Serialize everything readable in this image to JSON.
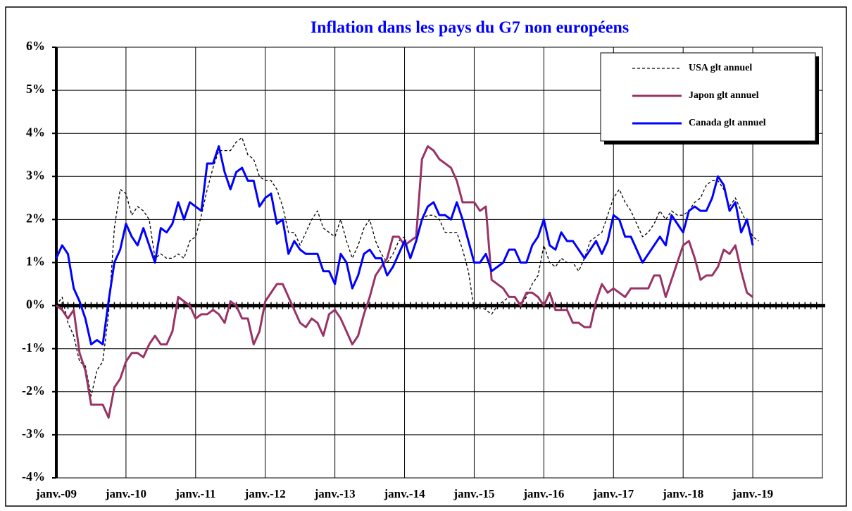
{
  "chart_data": {
    "type": "line",
    "title": "Inflation dans les pays du G7 non européens",
    "categories": [
      "janv.-09",
      null,
      null,
      null,
      null,
      null,
      null,
      null,
      null,
      null,
      null,
      null,
      "janv.-10",
      null,
      null,
      null,
      null,
      null,
      null,
      null,
      null,
      null,
      null,
      null,
      "janv.-11",
      null,
      null,
      null,
      null,
      null,
      null,
      null,
      null,
      null,
      null,
      null,
      "janv.-12",
      null,
      null,
      null,
      null,
      null,
      null,
      null,
      null,
      null,
      null,
      null,
      "janv.-13",
      null,
      null,
      null,
      null,
      null,
      null,
      null,
      null,
      null,
      null,
      null,
      "janv.-14",
      null,
      null,
      null,
      null,
      null,
      null,
      null,
      null,
      null,
      null,
      null,
      "janv.-15",
      null,
      null,
      null,
      null,
      null,
      null,
      null,
      null,
      null,
      null,
      null,
      "janv.-16",
      null,
      null,
      null,
      null,
      null,
      null,
      null,
      null,
      null,
      null,
      null,
      "janv.-17",
      null,
      null,
      null,
      null,
      null,
      null,
      null,
      null,
      null,
      null,
      null,
      "janv.-18",
      null,
      null,
      null,
      null,
      null,
      null,
      null,
      null,
      null,
      null,
      null,
      "janv.-19",
      null,
      null,
      null,
      null,
      null,
      null,
      null,
      null,
      null,
      null,
      null
    ],
    "series": [
      {
        "name": "USA glt annuel",
        "color": "#000000",
        "dash": true,
        "values": [
          0.0,
          0.2,
          -0.4,
          -0.7,
          -1.3,
          -1.4,
          -2.1,
          -1.5,
          -1.3,
          -0.2,
          1.8,
          2.7,
          2.6,
          2.1,
          2.3,
          2.2,
          2.0,
          1.1,
          1.2,
          1.1,
          1.1,
          1.2,
          1.1,
          1.5,
          1.6,
          2.1,
          2.7,
          3.2,
          3.6,
          3.6,
          3.6,
          3.8,
          3.9,
          3.5,
          3.4,
          3.0,
          2.9,
          2.9,
          2.7,
          2.3,
          1.7,
          1.7,
          1.4,
          1.7,
          2.0,
          2.2,
          1.8,
          1.7,
          1.6,
          2.0,
          1.5,
          1.1,
          1.4,
          1.8,
          2.0,
          1.5,
          1.2,
          1.0,
          1.2,
          1.5,
          1.6,
          1.1,
          1.5,
          2.0,
          2.1,
          2.1,
          2.0,
          1.7,
          1.7,
          1.7,
          1.3,
          0.8,
          -0.1,
          0.0,
          -0.1,
          -0.2,
          0.0,
          0.1,
          0.2,
          0.2,
          0.0,
          0.2,
          0.5,
          0.7,
          1.4,
          1.0,
          0.9,
          1.1,
          1.0,
          1.0,
          0.8,
          1.1,
          1.5,
          1.6,
          1.7,
          2.1,
          2.5,
          2.7,
          2.4,
          2.2,
          1.9,
          1.6,
          1.7,
          1.9,
          2.2,
          2.0,
          2.2,
          2.1,
          2.1,
          2.2,
          2.4,
          2.5,
          2.8,
          2.9,
          2.9,
          2.7,
          2.3,
          2.5,
          2.2,
          1.9,
          1.6,
          1.5,
          null,
          null,
          null,
          null,
          null,
          null,
          null,
          null,
          null,
          null
        ]
      },
      {
        "name": "Japon glt annuel",
        "color": "#993366",
        "dash": false,
        "values": [
          0.0,
          -0.1,
          -0.3,
          -0.1,
          -1.1,
          -1.5,
          -2.3,
          -2.3,
          -2.3,
          -2.6,
          -1.9,
          -1.7,
          -1.3,
          -1.1,
          -1.1,
          -1.2,
          -0.9,
          -0.7,
          -0.9,
          -0.9,
          -0.6,
          0.2,
          0.1,
          0.0,
          -0.3,
          -0.2,
          -0.2,
          -0.1,
          -0.2,
          -0.4,
          0.1,
          0.0,
          -0.3,
          -0.3,
          -0.9,
          -0.6,
          0.1,
          0.3,
          0.5,
          0.5,
          0.2,
          -0.1,
          -0.4,
          -0.5,
          -0.3,
          -0.4,
          -0.7,
          -0.2,
          -0.1,
          -0.3,
          -0.6,
          -0.9,
          -0.7,
          -0.2,
          0.2,
          0.7,
          0.9,
          1.1,
          1.6,
          1.6,
          1.4,
          1.5,
          1.6,
          3.4,
          3.7,
          3.6,
          3.4,
          3.3,
          3.2,
          2.9,
          2.4,
          2.4,
          2.4,
          2.2,
          2.3,
          0.6,
          0.5,
          0.4,
          0.2,
          0.2,
          0.0,
          0.3,
          0.3,
          0.2,
          0.0,
          0.3,
          -0.1,
          -0.1,
          -0.1,
          -0.4,
          -0.4,
          -0.5,
          -0.5,
          0.1,
          0.5,
          0.3,
          0.4,
          0.3,
          0.2,
          0.4,
          0.4,
          0.4,
          0.4,
          0.7,
          0.7,
          0.2,
          0.6,
          1.0,
          1.4,
          1.5,
          1.1,
          0.6,
          0.7,
          0.7,
          0.9,
          1.3,
          1.2,
          1.4,
          0.8,
          0.3,
          0.2,
          null,
          null,
          null,
          null,
          null,
          null,
          null,
          null,
          null,
          null,
          null
        ]
      },
      {
        "name": "Canada glt annuel",
        "color": "#0000ff",
        "dash": false,
        "values": [
          1.1,
          1.4,
          1.2,
          0.4,
          0.1,
          -0.3,
          -0.9,
          -0.8,
          -0.9,
          0.1,
          1.0,
          1.3,
          1.9,
          1.6,
          1.4,
          1.8,
          1.4,
          1.0,
          1.8,
          1.7,
          1.9,
          2.4,
          2.0,
          2.4,
          2.3,
          2.2,
          3.3,
          3.3,
          3.7,
          3.1,
          2.7,
          3.1,
          3.2,
          2.9,
          2.9,
          2.3,
          2.5,
          2.6,
          1.9,
          2.0,
          1.2,
          1.5,
          1.3,
          1.2,
          1.2,
          1.2,
          0.8,
          0.8,
          0.5,
          1.2,
          1.0,
          0.4,
          0.7,
          1.2,
          1.3,
          1.1,
          1.1,
          0.7,
          0.9,
          1.2,
          1.5,
          1.1,
          1.5,
          2.0,
          2.3,
          2.4,
          2.1,
          2.1,
          2.0,
          2.4,
          2.0,
          1.5,
          1.0,
          1.0,
          1.2,
          0.8,
          0.9,
          1.0,
          1.3,
          1.3,
          1.0,
          1.0,
          1.4,
          1.6,
          2.0,
          1.4,
          1.3,
          1.7,
          1.5,
          1.5,
          1.3,
          1.1,
          1.3,
          1.5,
          1.2,
          1.5,
          2.1,
          2.0,
          1.6,
          1.6,
          1.3,
          1.0,
          1.2,
          1.4,
          1.6,
          1.4,
          2.1,
          1.9,
          1.7,
          2.2,
          2.3,
          2.2,
          2.2,
          2.5,
          3.0,
          2.8,
          2.2,
          2.4,
          1.7,
          2.0,
          1.4,
          null,
          null,
          null,
          null,
          null,
          null,
          null,
          null,
          null,
          null,
          null
        ]
      }
    ],
    "ylim": [
      -4,
      6
    ],
    "yticks": [
      {
        "value": -4,
        "label": "-4%"
      },
      {
        "value": -3,
        "label": "-3%"
      },
      {
        "value": -2,
        "label": "-2%"
      },
      {
        "value": -1,
        "label": "-1%"
      },
      {
        "value": 0,
        "label": "0%"
      },
      {
        "value": 1,
        "label": "1%"
      },
      {
        "value": 2,
        "label": "2%"
      },
      {
        "value": 3,
        "label": "3%"
      },
      {
        "value": 4,
        "label": "4%"
      },
      {
        "value": 5,
        "label": "5%"
      },
      {
        "value": 6,
        "label": "6%"
      }
    ],
    "grid": true,
    "legend": "top-right"
  }
}
